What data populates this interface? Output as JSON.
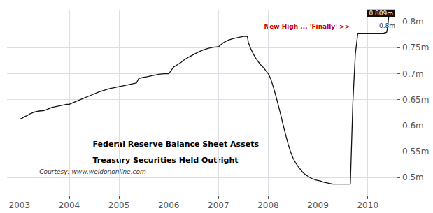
{
  "chart_data": {
    "type": "line",
    "title": "Federal Reserve Balance Sheet Assets",
    "subtitle": "Treasury Securities Held Outright",
    "annotations": [
      {
        "text": "New High ... 'Finally' >>",
        "color": "#cc0000"
      },
      {
        "text": "Courtesy: www.weldononline.com",
        "color": "#333333"
      },
      {
        "text": "0.809m",
        "y": 0.809,
        "color": "#111111"
      },
      {
        "text": "0.8m",
        "y": 0.8
      }
    ],
    "color": "#111111",
    "grid": true,
    "xlim": [
      2002.75,
      2010.58
    ],
    "xticks": [
      2003,
      2004,
      2005,
      2006,
      2007,
      2008,
      2009,
      2010
    ],
    "ylim": [
      0.465,
      0.822
    ],
    "yticks": [
      {
        "value": 0.5,
        "label": "0.5m"
      },
      {
        "value": 0.55,
        "label": "0.55m"
      },
      {
        "value": 0.6,
        "label": "0.6m"
      },
      {
        "value": 0.65,
        "label": "0.65m"
      },
      {
        "value": 0.7,
        "label": "0.7m"
      },
      {
        "value": 0.75,
        "label": "0.75m"
      },
      {
        "value": 0.8,
        "label": "0.8m"
      }
    ],
    "x": [
      2003.0,
      2003.05,
      2003.1,
      2003.15,
      2003.2,
      2003.25,
      2003.3,
      2003.4,
      2003.5,
      2003.55,
      2003.6,
      2003.65,
      2003.7,
      2003.75,
      2003.8,
      2003.85,
      2003.9,
      2003.95,
      2004.0,
      2004.05,
      2004.1,
      2004.15,
      2004.2,
      2004.3,
      2004.4,
      2004.5,
      2004.6,
      2004.7,
      2004.8,
      2004.9,
      2005.0,
      2005.05,
      2005.1,
      2005.15,
      2005.2,
      2005.25,
      2005.3,
      2005.35,
      2005.4,
      2005.45,
      2005.5,
      2005.55,
      2005.6,
      2005.65,
      2005.7,
      2005.75,
      2005.8,
      2005.9,
      2006.0,
      2006.1,
      2006.15,
      2006.2,
      2006.25,
      2006.3,
      2006.35,
      2006.4,
      2006.5,
      2006.6,
      2006.7,
      2006.8,
      2006.9,
      2007.0,
      2007.1,
      2007.2,
      2007.3,
      2007.4,
      2007.45,
      2007.5,
      2007.52,
      2007.54,
      2007.56,
      2007.58,
      2007.6,
      2007.65,
      2007.7,
      2007.75,
      2007.8,
      2007.85,
      2007.9,
      2007.92,
      2007.95,
      2008.0,
      2008.05,
      2008.1,
      2008.15,
      2008.2,
      2008.25,
      2008.3,
      2008.35,
      2008.4,
      2008.45,
      2008.5,
      2008.55,
      2008.6,
      2008.65,
      2008.7,
      2008.75,
      2008.8,
      2008.85,
      2008.9,
      2008.95,
      2009.0,
      2009.05,
      2009.1,
      2009.15,
      2009.2,
      2009.25,
      2009.3,
      2009.35,
      2009.4,
      2009.45,
      2009.5,
      2009.55,
      2009.6,
      2009.65,
      2009.7,
      2009.75,
      2009.8,
      2009.85,
      2009.9,
      2009.95,
      2010.0,
      2010.05,
      2010.1,
      2010.15,
      2010.2,
      2010.25,
      2010.3,
      2010.32,
      2010.34,
      2010.36,
      2010.38,
      2010.4,
      2010.42
    ],
    "values": [
      0.612,
      0.614,
      0.617,
      0.619,
      0.622,
      0.624,
      0.626,
      0.628,
      0.629,
      0.631,
      0.633,
      0.635,
      0.636,
      0.637,
      0.638,
      0.639,
      0.64,
      0.641,
      0.641,
      0.643,
      0.645,
      0.647,
      0.649,
      0.653,
      0.657,
      0.661,
      0.665,
      0.668,
      0.671,
      0.673,
      0.675,
      0.676,
      0.677,
      0.678,
      0.679,
      0.68,
      0.681,
      0.682,
      0.691,
      0.692,
      0.693,
      0.694,
      0.695,
      0.696,
      0.697,
      0.698,
      0.699,
      0.7,
      0.7,
      0.713,
      0.716,
      0.719,
      0.722,
      0.726,
      0.729,
      0.732,
      0.737,
      0.742,
      0.746,
      0.749,
      0.751,
      0.752,
      0.76,
      0.765,
      0.768,
      0.77,
      0.771,
      0.772,
      0.772,
      0.772,
      0.772,
      0.772,
      0.76,
      0.748,
      0.738,
      0.73,
      0.723,
      0.717,
      0.712,
      0.71,
      0.706,
      0.7,
      0.69,
      0.675,
      0.658,
      0.64,
      0.621,
      0.601,
      0.582,
      0.564,
      0.549,
      0.537,
      0.528,
      0.521,
      0.515,
      0.509,
      0.505,
      0.502,
      0.499,
      0.497,
      0.495,
      0.494,
      0.493,
      0.491,
      0.49,
      0.489,
      0.488,
      0.487,
      0.487,
      0.487,
      0.487,
      0.487,
      0.487,
      0.487,
      0.487,
      0.644,
      0.738,
      0.778,
      0.778,
      0.778,
      0.778,
      0.778,
      0.778,
      0.778,
      0.778,
      0.778,
      0.778,
      0.778,
      0.778,
      0.779,
      0.779,
      0.78,
      0.79,
      0.809
    ]
  }
}
